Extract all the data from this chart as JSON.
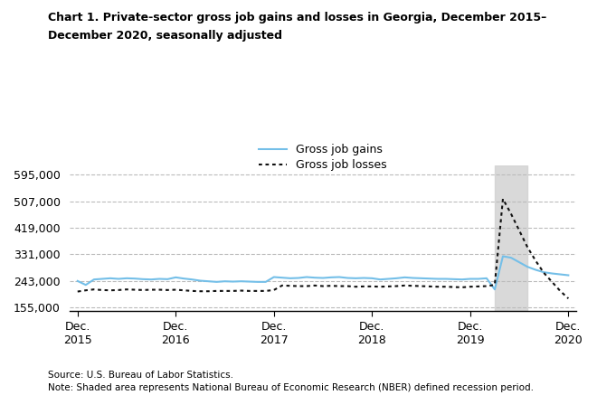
{
  "title_line1": "Chart 1. Private-sector gross job gains and losses in Georgia, December 2015–",
  "title_line2": "December 2020, seasonally adjusted",
  "source_text": "Source: U.S. Bureau of Labor Statistics.",
  "note_text": "Note: Shaded area represents National Bureau of Economic Research (NBER) defined recession period.",
  "legend_gains": "Gross job gains",
  "legend_losses": "Gross job losses",
  "yticks": [
    155000,
    243000,
    331000,
    419000,
    507000,
    595000
  ],
  "ylim": [
    143000,
    625000
  ],
  "shaded_x_start": 51,
  "shaded_x_end": 55,
  "background_color": "#ffffff",
  "grid_color": "#bbbbbb",
  "gains_color": "#74bfe8",
  "losses_color": "#111111",
  "shade_color": "#d3d3d3",
  "xtick_positions": [
    0,
    12,
    24,
    36,
    48,
    60
  ],
  "xtick_labels": [
    "Dec.\n2015",
    "Dec.\n2016",
    "Dec.\n2017",
    "Dec.\n2018",
    "Dec.\n2019",
    "Dec.\n2020"
  ],
  "gains_data": [
    243000,
    230000,
    248000,
    250000,
    252000,
    250000,
    252000,
    251000,
    249000,
    248000,
    250000,
    249000,
    255000,
    251000,
    248000,
    244000,
    242000,
    240000,
    242000,
    241000,
    242000,
    241000,
    240000,
    240000,
    256000,
    254000,
    252000,
    253000,
    256000,
    254000,
    253000,
    255000,
    256000,
    253000,
    252000,
    253000,
    252000,
    248000,
    250000,
    252000,
    255000,
    253000,
    252000,
    251000,
    250000,
    250000,
    249000,
    248000,
    250000,
    250000,
    252000,
    215000,
    325000,
    320000,
    305000,
    290000,
    280000,
    272000,
    268000,
    265000,
    262000
  ],
  "losses_data": [
    208000,
    212000,
    215000,
    213000,
    212000,
    213000,
    215000,
    214000,
    213000,
    214000,
    214000,
    213000,
    214000,
    212000,
    210000,
    209000,
    209000,
    210000,
    210000,
    210000,
    211000,
    210000,
    210000,
    210000,
    213000,
    228000,
    227000,
    226000,
    226000,
    228000,
    226000,
    227000,
    226000,
    226000,
    224000,
    225000,
    225000,
    224000,
    225000,
    226000,
    228000,
    227000,
    226000,
    225000,
    224000,
    224000,
    223000,
    222000,
    224000,
    225000,
    226000,
    230000,
    515000,
    465000,
    410000,
    355000,
    310000,
    270000,
    240000,
    210000,
    185000
  ]
}
